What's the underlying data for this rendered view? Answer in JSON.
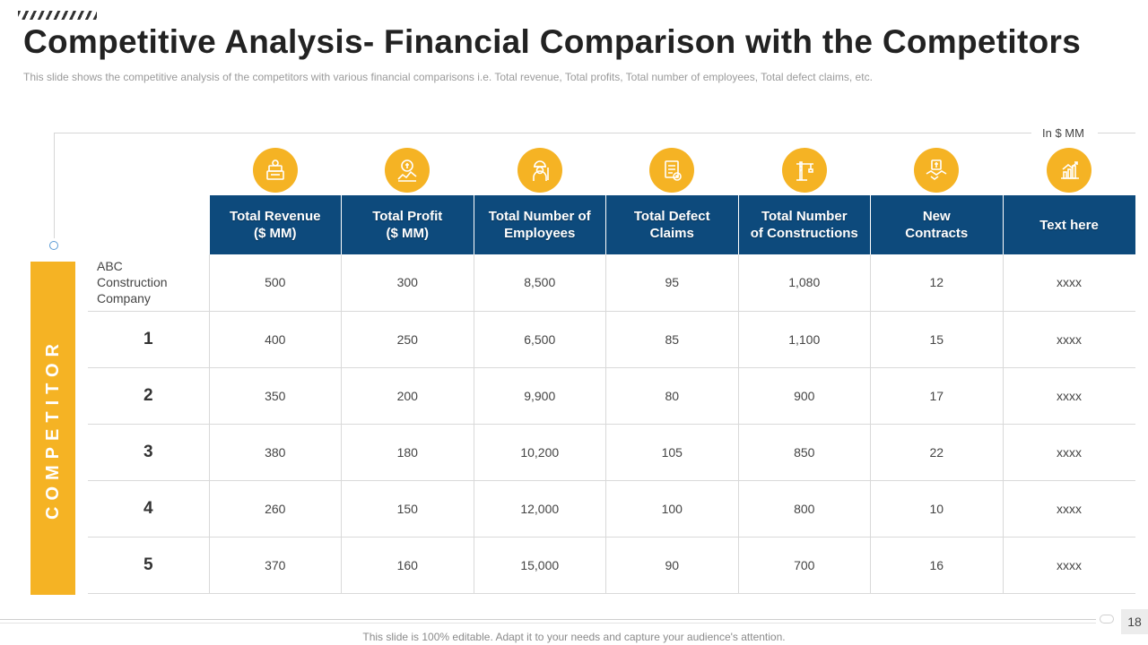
{
  "title": "Competitive Analysis- Financial Comparison with the Competitors",
  "subtitle": "This slide shows the competitive analysis of the competitors with various financial comparisons i.e. Total revenue,  Total profits, Total number of employees, Total defect claims, etc.",
  "unit": "In $ MM",
  "side_label": "COMPETITOR",
  "icons": [
    "money-stack-icon",
    "profit-coins-icon",
    "worker-icon",
    "defect-claim-icon",
    "construction-crane-icon",
    "handshake-contract-icon",
    "growth-chart-icon"
  ],
  "colors": {
    "accent": "#f5b324",
    "header": "#0d4a7c"
  },
  "table": {
    "headers": [
      [
        "Total Revenue",
        "($ MM)"
      ],
      [
        "Total Profit",
        "($ MM)"
      ],
      [
        "Total Number of",
        "Employees"
      ],
      [
        "Total Defect",
        "Claims"
      ],
      [
        "Total Number",
        "of Constructions"
      ],
      [
        "New",
        "Contracts"
      ],
      [
        "Text here",
        ""
      ]
    ],
    "rows": [
      {
        "label": [
          "ABC",
          "Construction",
          "Company"
        ],
        "values": [
          "500",
          "300",
          "8,500",
          "95",
          "1,080",
          "12",
          "xxxx"
        ]
      },
      {
        "label": [
          "1"
        ],
        "values": [
          "400",
          "250",
          "6,500",
          "85",
          "1,100",
          "15",
          "xxxx"
        ]
      },
      {
        "label": [
          "2"
        ],
        "values": [
          "350",
          "200",
          "9,900",
          "80",
          "900",
          "17",
          "xxxx"
        ]
      },
      {
        "label": [
          "3"
        ],
        "values": [
          "380",
          "180",
          "10,200",
          "105",
          "850",
          "22",
          "xxxx"
        ]
      },
      {
        "label": [
          "4"
        ],
        "values": [
          "260",
          "150",
          "12,000",
          "100",
          "800",
          "10",
          "xxxx"
        ]
      },
      {
        "label": [
          "5"
        ],
        "values": [
          "370",
          "160",
          "15,000",
          "90",
          "700",
          "16",
          "xxxx"
        ]
      }
    ]
  },
  "page_number": "18",
  "footer": "This slide is 100% editable. Adapt it to your needs and capture your audience's attention."
}
